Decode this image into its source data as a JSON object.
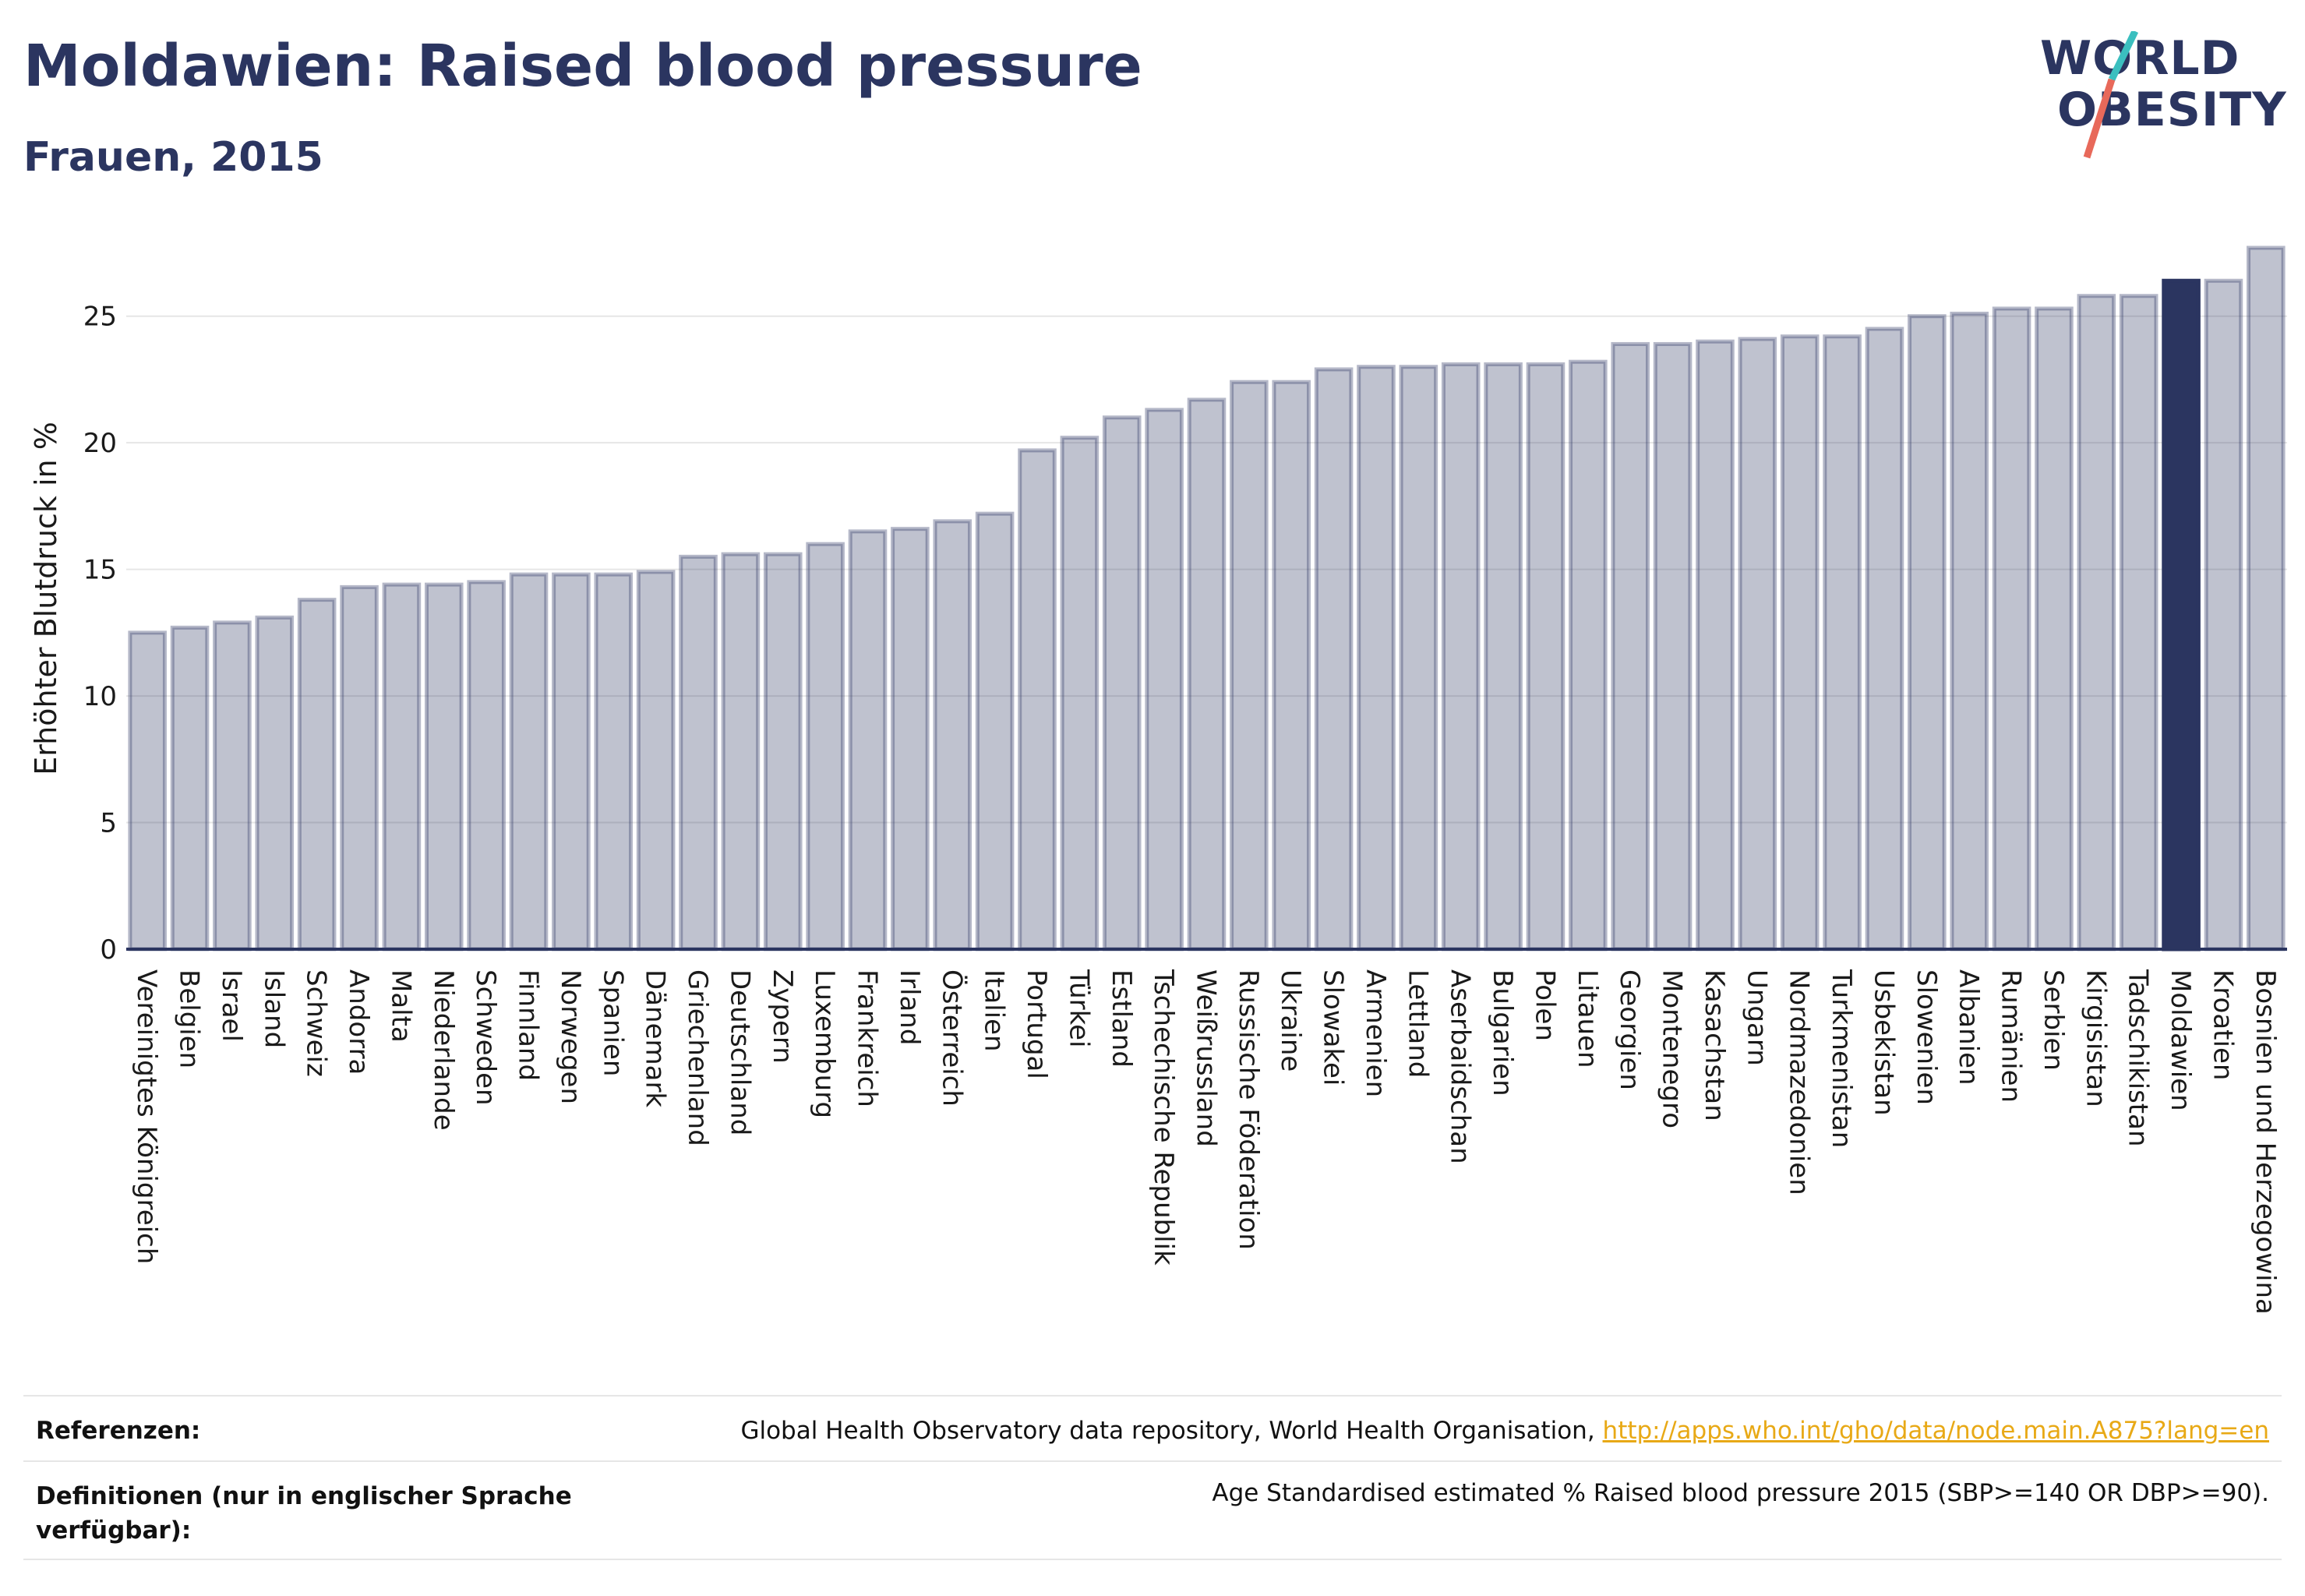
{
  "header": {
    "title": "Moldawien: Raised blood pressure",
    "subtitle": "Frauen, 2015"
  },
  "logo": {
    "line1": "WORLD",
    "line2": "OBESITY",
    "colors": {
      "text": "#2b3560",
      "slash_top": "#3bbfbf",
      "slash_bottom": "#e8695a"
    }
  },
  "colors": {
    "bar_fill": "#2b3560",
    "bar_fill_opacity": 0.3,
    "bar_highlight": "#2b3560",
    "grid": "#e6e6e6",
    "axis": "#2b3560"
  },
  "chart_data": {
    "type": "bar",
    "title": "Moldawien: Raised blood pressure",
    "subtitle": "Frauen, 2015",
    "xlabel": "",
    "ylabel": "Erhöhter Blutdruck in %",
    "ylim": [
      0,
      27.7
    ],
    "yticks": [
      0,
      5,
      10,
      15,
      20,
      25
    ],
    "grid": true,
    "legend": "none",
    "highlight": "Moldawien",
    "categories": [
      "Vereinigtes Königreich",
      "Belgien",
      "Israel",
      "Island",
      "Schweiz",
      "Andorra",
      "Malta",
      "Niederlande",
      "Schweden",
      "Finnland",
      "Norwegen",
      "Spanien",
      "Dänemark",
      "Griechenland",
      "Deutschland",
      "Zypern",
      "Luxemburg",
      "Frankreich",
      "Irland",
      "Österreich",
      "Italien",
      "Portugal",
      "Türkei",
      "Estland",
      "Tschechische Republik",
      "Weißrussland",
      "Russische Föderation",
      "Ukraine",
      "Slowakei",
      "Armenien",
      "Lettland",
      "Aserbaidschan",
      "Bulgarien",
      "Polen",
      "Litauen",
      "Georgien",
      "Montenegro",
      "Kasachstan",
      "Ungarn",
      "Nordmazedonien",
      "Turkmenistan",
      "Usbekistan",
      "Slowenien",
      "Albanien",
      "Rumänien",
      "Serbien",
      "Kirgisistan",
      "Tadschikistan",
      "Moldawien",
      "Kroatien",
      "Bosnien und Herzegowina"
    ],
    "values": [
      12.5,
      12.7,
      12.9,
      13.1,
      13.8,
      14.3,
      14.4,
      14.4,
      14.5,
      14.8,
      14.8,
      14.8,
      14.9,
      15.5,
      15.6,
      15.6,
      16.0,
      16.5,
      16.6,
      16.9,
      17.2,
      19.7,
      20.2,
      21.0,
      21.3,
      21.7,
      22.4,
      22.4,
      22.9,
      23.0,
      23.0,
      23.1,
      23.1,
      23.1,
      23.2,
      23.9,
      23.9,
      24.0,
      24.1,
      24.2,
      24.2,
      24.5,
      25.0,
      25.1,
      25.3,
      25.3,
      25.8,
      25.8,
      26.4,
      26.4,
      27.7
    ]
  },
  "footer": {
    "references_label": "Referenzen:",
    "references_text": "Global Health Observatory data repository, World Health Organisation, ",
    "references_link": "http://apps.who.int/gho/data/node.main.A875?lang=en",
    "definitions_label_line1": "Definitionen (nur in englischer Sprache",
    "definitions_label_line2": "verfügbar):",
    "definitions_text": "Age Standardised estimated % Raised blood pressure 2015 (SBP>=140 OR DBP>=90)."
  }
}
